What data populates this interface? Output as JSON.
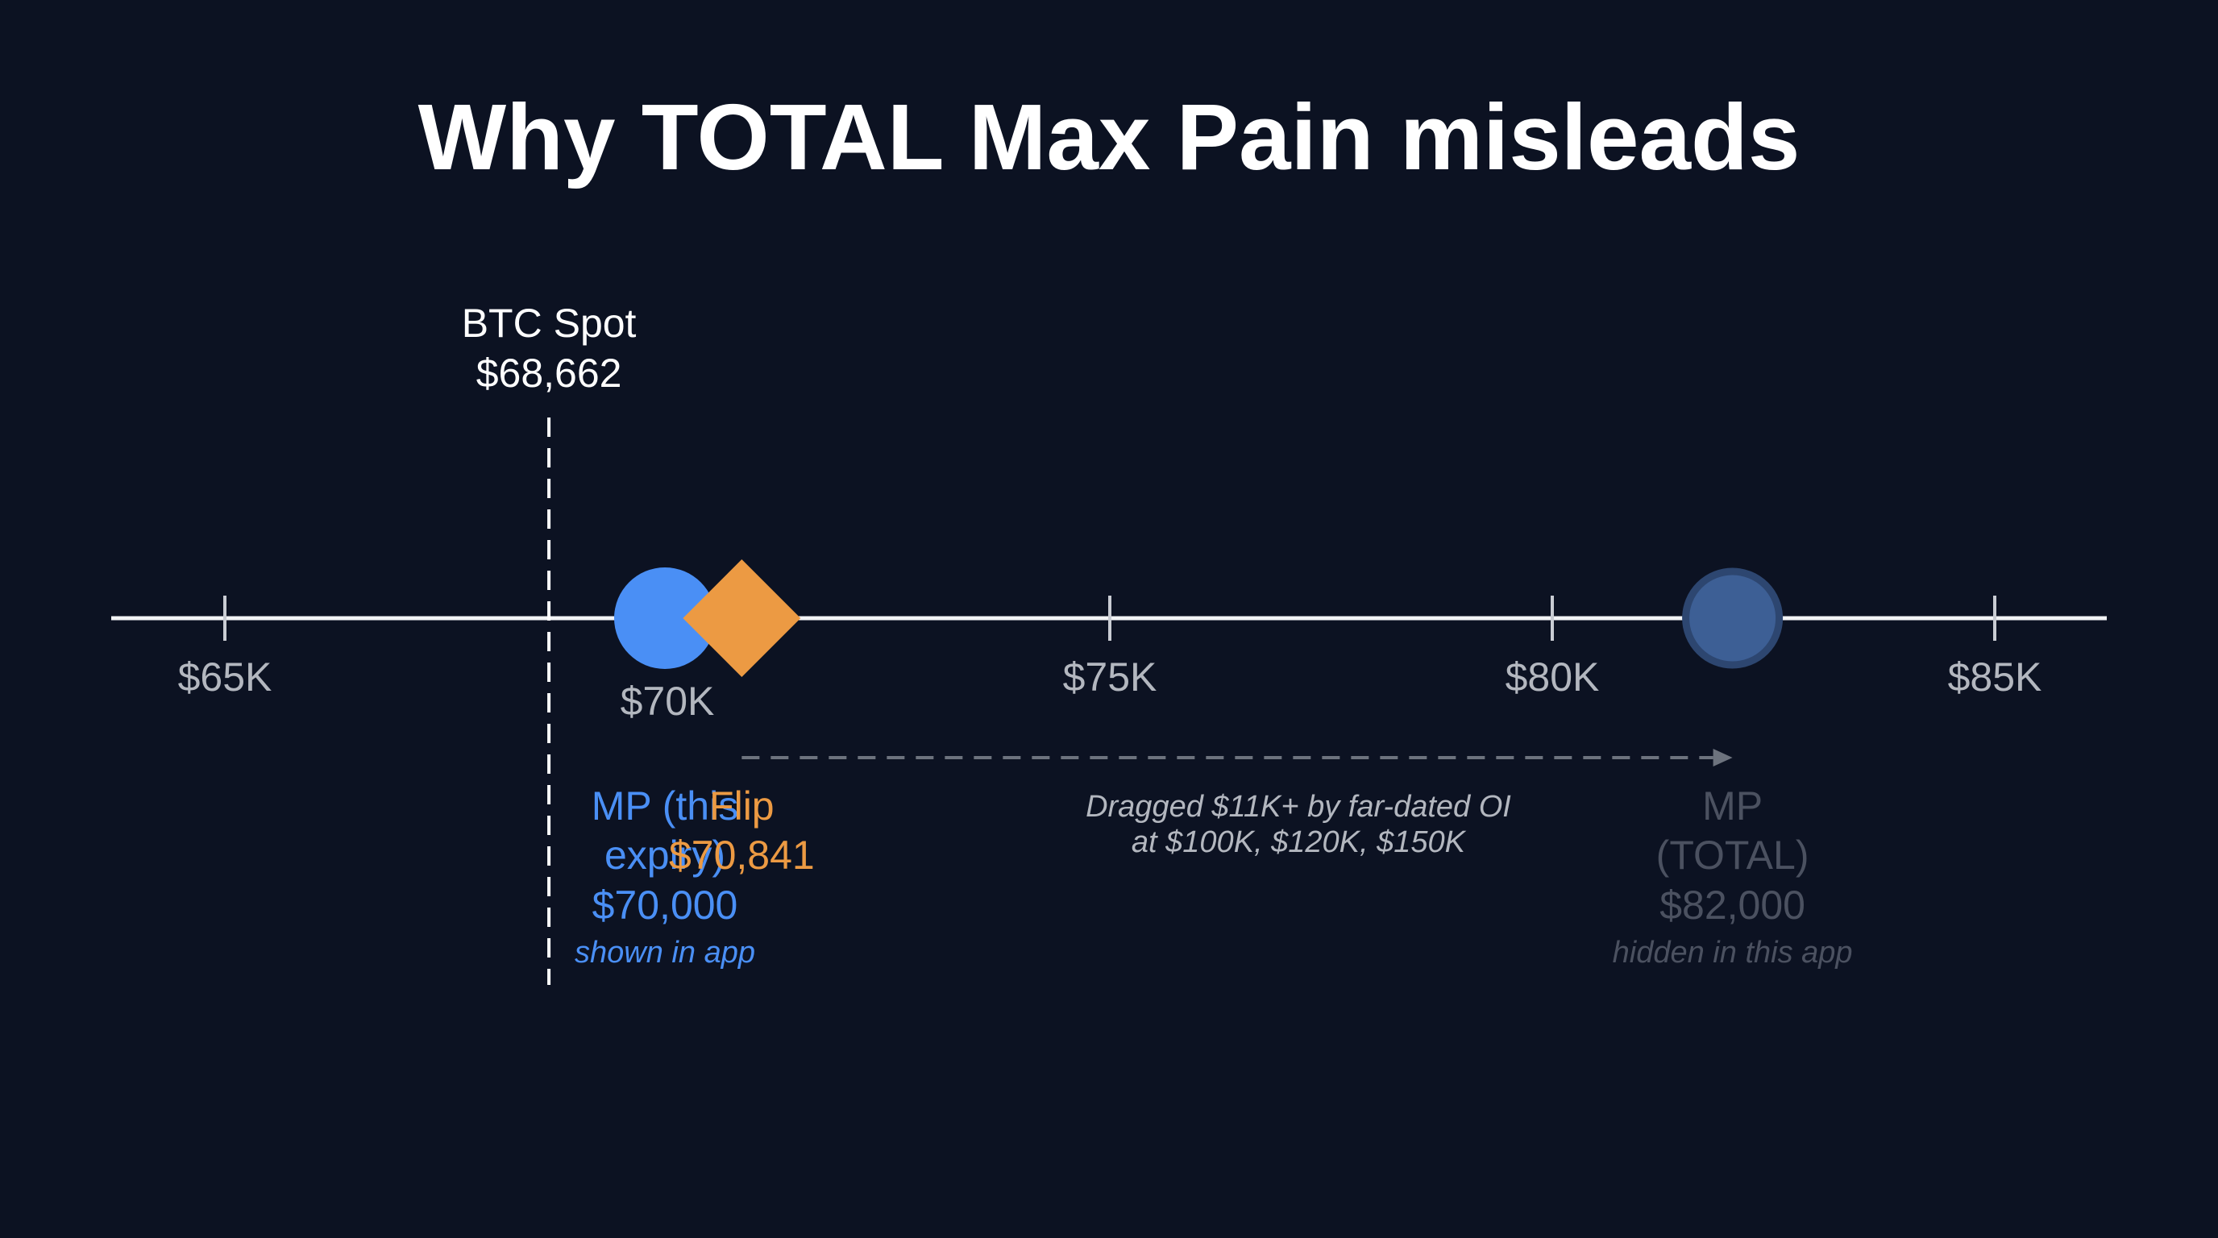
{
  "title": "Why TOTAL Max Pain misleads",
  "colors": {
    "background": "#0c1222",
    "axis": "#f2f3f5",
    "tick": "#c9ccd3",
    "tick_label": "#b3b7bf",
    "spot": "#ffffff",
    "mp_expiry": "#4a8ff5",
    "flip": "#ec9a43",
    "mp_total": "#3d5f95",
    "mp_total_ring": "#2d4670",
    "muted_text": "#4b5160",
    "arrow": "#6d737e",
    "note_text": "#b3b7bf"
  },
  "chart_data": {
    "type": "number-line",
    "axis_range": [
      64000,
      86000
    ],
    "ticks": [
      {
        "value": 65000,
        "label": "$65K"
      },
      {
        "value": 70000,
        "label": "$70K"
      },
      {
        "value": 75000,
        "label": "$75K"
      },
      {
        "value": 80000,
        "label": "$80K"
      },
      {
        "value": 85000,
        "label": "$85K"
      }
    ],
    "spot": {
      "value": 68662,
      "label": "BTC Spot",
      "value_label": "$68,662"
    },
    "mp_expiry": {
      "value": 70000,
      "label_lines": [
        "MP (this",
        "expiry)"
      ],
      "value_label": "$70,000",
      "note": "shown in app"
    },
    "flip": {
      "value": 70841,
      "label": "Flip",
      "value_label": "$70,841"
    },
    "mp_total": {
      "value": 82000,
      "label_lines": [
        "MP",
        "(TOTAL)"
      ],
      "value_label": "$82,000",
      "note": "hidden in this app"
    },
    "drag_arrow": {
      "from": 70841,
      "to": 82000,
      "note_lines": [
        "Dragged $11K+ by far-dated OI",
        "at $100K, $120K, $150K"
      ]
    }
  }
}
